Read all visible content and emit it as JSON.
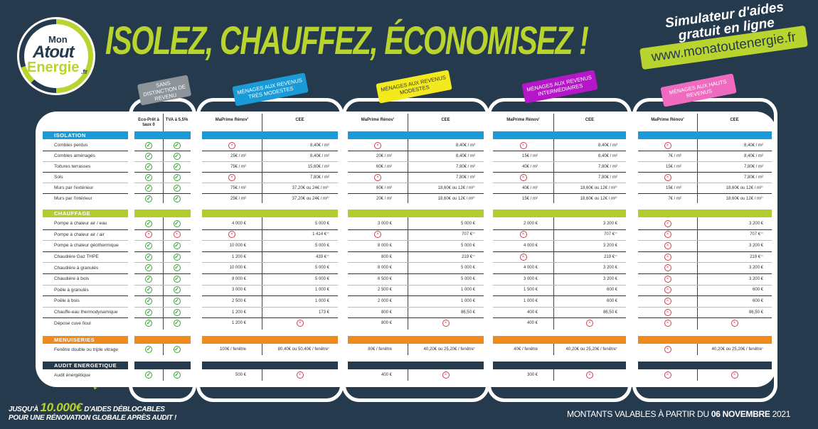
{
  "logo": {
    "line1": "Mon",
    "line2": "Atout",
    "line3": "Energie",
    "line4": ".fr"
  },
  "title": "ISOLEZ, CHAUFFEZ, ÉCONOMISEZ !",
  "simulator": {
    "text": "Simulateur d'aides gratuit en ligne",
    "url": "www.monatoutenergie.fr"
  },
  "colors": {
    "background": "#263a4e",
    "accent": "#b9d42f",
    "isolation": "#1a9ad6",
    "chauffage": "#b5cc2e",
    "menuiseries": "#f08a1c",
    "audit": "#243a4f"
  },
  "groups": [
    {
      "tag": "SANS DISTINCTION DE REVENU",
      "color": "#8c9399",
      "cols": [
        "Eco-Prêt à taux 0",
        "TVA à 5.5%"
      ]
    },
    {
      "tag": "MÉNAGES AUX REVENUS TRÈS MODESTES",
      "color": "#1a9ad6",
      "cols": [
        "MaPrime Rénov'",
        "CEE"
      ]
    },
    {
      "tag": "MÉNAGES AUX REVENUS MODESTES",
      "color": "#f2ea1f",
      "cols": [
        "MaPrime Rénov'",
        "CEE"
      ]
    },
    {
      "tag": "MÉNAGES AUX REVENUS INTERMÉDIAIRES",
      "color": "#b516c8",
      "cols": [
        "MaPrime Rénov'",
        "CEE"
      ]
    },
    {
      "tag": "MÉNAGES AUX HAUTS REVENUS",
      "color": "#f06bc0",
      "cols": [
        "MaPrime Rénov'",
        "CEE"
      ]
    }
  ],
  "icons": {
    "V": "check-circle-icon",
    "X": "cross-circle-icon"
  },
  "sections": [
    {
      "title": "ISOLATION",
      "color": "#1a9ad6",
      "rows": [
        {
          "label": "Combles perdus",
          "v": [
            "V",
            "V",
            "X",
            "8,40€ / m²",
            "X",
            "8,40€ / m²",
            "X",
            "8,40€ / m²",
            "X",
            "8,40€ / m²"
          ]
        },
        {
          "label": "Combles aménagés",
          "v": [
            "V",
            "V",
            "25€ / m²",
            "8,40€ / m²",
            "20€ / m²",
            "8,40€ / m²",
            "15€ / m²",
            "8,40€ / m²",
            "7€ / m²",
            "8,40€ / m²"
          ]
        },
        {
          "label": "Toitures terrasses",
          "v": [
            "V",
            "V",
            "75€ / m²",
            "15,60€ / m²",
            "60€ / m²",
            "7,80€ / m²",
            "40€ / m²",
            "7,80€ / m²",
            "15€ / m²",
            "7,80€ / m²"
          ]
        },
        {
          "label": "Sols",
          "v": [
            "V",
            "V",
            "X",
            "7,80€ / m²",
            "X",
            "7,80€ / m²",
            "X",
            "7,80€ / m²",
            "X",
            "7,80€ / m²"
          ]
        },
        {
          "label": "Murs par l'extérieur",
          "v": [
            "V",
            "V",
            "75€ / m²",
            "37,20€ ou 24€ / m² *",
            "60€ / m²",
            "18,60€ ou 12€ / m² *",
            "40€ / m²",
            "18,60€ ou 12€ / m² *",
            "15€ / m²",
            "18,60€ ou 12€ / m² *"
          ]
        },
        {
          "label": "Murs par l'intérieur",
          "v": [
            "V",
            "V",
            "25€ / m²",
            "37,20€ ou 24€ / m² *",
            "20€ / m²",
            "18,60€ ou 12€ / m² *",
            "15€ / m²",
            "18,60€ ou 12€ / m² *",
            "7€ / m²",
            "18,60€ ou 12€ / m² *"
          ]
        }
      ]
    },
    {
      "title": "CHAUFFAGE",
      "color": "#b5cc2e",
      "rows": [
        {
          "label": "Pompe à chaleur air / eau",
          "v": [
            "V",
            "V",
            "4 000 €",
            "5 000 €",
            "3 000 €",
            "5 000 €",
            "2 000 €",
            "3 200 €",
            "X",
            "3 200 €"
          ]
        },
        {
          "label": "Pompe à chaleur air / air",
          "v": [
            "X",
            "X",
            "X",
            "1 414 € **",
            "X",
            "707 € **",
            "X",
            "707 € **",
            "X",
            "707 € **"
          ]
        },
        {
          "label": "Pompe à chaleur géothermique",
          "v": [
            "V",
            "V",
            "10 000 €",
            "5 000 €",
            "8 000 €",
            "5 000 €",
            "4 000 €",
            "3 200 €",
            "X",
            "3 200 €"
          ]
        },
        {
          "label": "Chaudière Gaz THPE",
          "v": [
            "V",
            "V",
            "1 200 €",
            "439 € **",
            "800 €",
            "219 € **",
            "X",
            "219 € **",
            "X",
            "219 € **"
          ]
        },
        {
          "label": "Chaudière à granulés",
          "v": [
            "V",
            "V",
            "10 000 €",
            "5 000 €",
            "8 000 €",
            "5 000 €",
            "4 000 €",
            "3 200 €",
            "X",
            "3 200 €"
          ]
        },
        {
          "label": "Chaudière à bois",
          "v": [
            "V",
            "V",
            "8 000 €",
            "5 000 €",
            "6 500 €",
            "5 000 €",
            "3 000 €",
            "3 200 €",
            "X",
            "3 200 €"
          ]
        },
        {
          "label": "Poêle à granulés",
          "v": [
            "V",
            "V",
            "3 000 €",
            "1 000 €",
            "2 500 €",
            "1 000 €",
            "1 500 €",
            "600 €",
            "X",
            "600 €"
          ]
        },
        {
          "label": "Poêle à bois",
          "v": [
            "V",
            "V",
            "2 500 €",
            "1 000 €",
            "2 000 €",
            "1 000 €",
            "1 000 €",
            "600 €",
            "X",
            "600 €"
          ]
        },
        {
          "label": "Chauffe-eau thermodynamique",
          "v": [
            "V",
            "V",
            "1 200 €",
            "173 €",
            "800 €",
            "86,50 €",
            "400 €",
            "86,50 €",
            "X",
            "86,50 €"
          ]
        },
        {
          "label": "Dépose cuve fioul",
          "v": [
            "V",
            "V",
            "1 200 €",
            "X",
            "800 €",
            "X",
            "400 €",
            "X",
            "X",
            "X"
          ]
        }
      ]
    },
    {
      "title": "MENUISERIES",
      "color": "#f08a1c",
      "rows": [
        {
          "label": "Fenêtre double ou triple vitrage",
          "v": [
            "V",
            "V",
            "100€ / fenêtre",
            "80,40€ ou 50,40€ / fenêtre *",
            "80€ /  fenêtre",
            "40,20€ ou 25,20€ / fenêtre *",
            "40€ / fenêtre",
            "40,20€ ou 25,20€ / fenêtre *",
            "X",
            "40,20€ ou 25,20€ / fenêtre *"
          ]
        }
      ]
    },
    {
      "title": "AUDIT ENERGETIQUE",
      "color": "#243a4f",
      "rows": [
        {
          "label": "Audit énergétique",
          "v": [
            "V",
            "V",
            "500 €",
            "X",
            "400 €",
            "X",
            "300 €",
            "X",
            "X",
            "X"
          ]
        }
      ]
    }
  ],
  "promo": {
    "pre": "JUSQU'À",
    "amount": "10.000€",
    "post": "D'AIDES DÉBLOCABLES",
    "line2": "POUR UNE RÉNOVATION GLOBALE APRÈS AUDIT !"
  },
  "validity": {
    "pre": "MONTANTS VALABLES À PARTIR DU",
    "date": "06 NOVEMBRE",
    "year": "2021"
  }
}
